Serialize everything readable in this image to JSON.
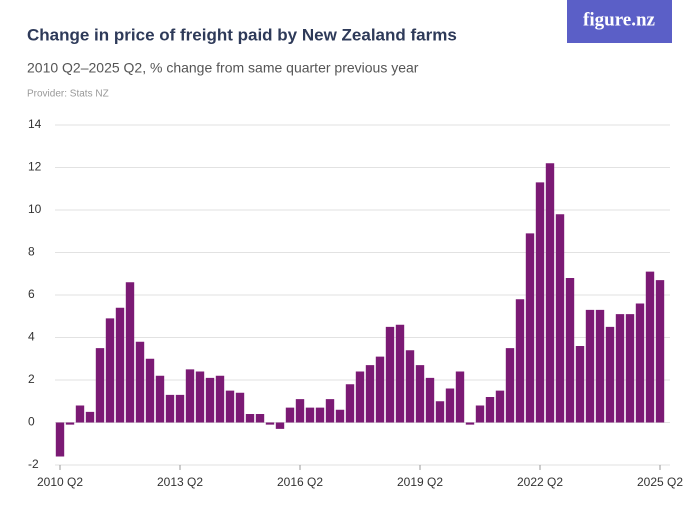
{
  "brand": "figure.nz",
  "chart_data": {
    "type": "bar",
    "title": "Change in price of freight paid by New Zealand farms",
    "subtitle": "2010 Q2–2025 Q2, % change from same quarter previous year",
    "provider": "Provider: Stats NZ",
    "color": "#7b1a74",
    "categories": [
      "2010 Q2",
      null,
      null,
      null,
      null,
      null,
      null,
      null,
      null,
      null,
      null,
      null,
      "2013 Q2",
      null,
      null,
      null,
      null,
      null,
      null,
      null,
      null,
      null,
      null,
      null,
      "2016 Q2",
      null,
      null,
      null,
      null,
      null,
      null,
      null,
      null,
      null,
      null,
      null,
      "2019 Q2",
      null,
      null,
      null,
      null,
      null,
      null,
      null,
      null,
      null,
      null,
      null,
      "2022 Q2",
      null,
      null,
      null,
      null,
      null,
      null,
      null,
      null,
      null,
      null,
      null,
      "2025 Q2"
    ],
    "values": [
      -1.6,
      -0.1,
      0.8,
      0.5,
      3.5,
      4.9,
      5.4,
      6.6,
      3.8,
      3.0,
      2.2,
      1.3,
      1.3,
      2.5,
      2.4,
      2.1,
      2.2,
      1.5,
      1.4,
      0.4,
      0.4,
      -0.1,
      -0.3,
      0.7,
      1.1,
      0.7,
      0.7,
      1.1,
      0.6,
      1.8,
      2.4,
      2.7,
      3.1,
      4.5,
      4.6,
      3.4,
      2.7,
      2.1,
      1.0,
      1.6,
      2.4,
      -0.1,
      0.8,
      1.2,
      1.5,
      3.5,
      5.8,
      8.9,
      11.3,
      12.2,
      9.8,
      6.8,
      3.6,
      5.3,
      5.3,
      4.5,
      5.1,
      5.1,
      5.6,
      7.1,
      6.7
    ],
    "ylim": [
      -2,
      14
    ],
    "yticks": [
      -2,
      0,
      2,
      4,
      6,
      8,
      10,
      12,
      14
    ],
    "grid": true
  }
}
